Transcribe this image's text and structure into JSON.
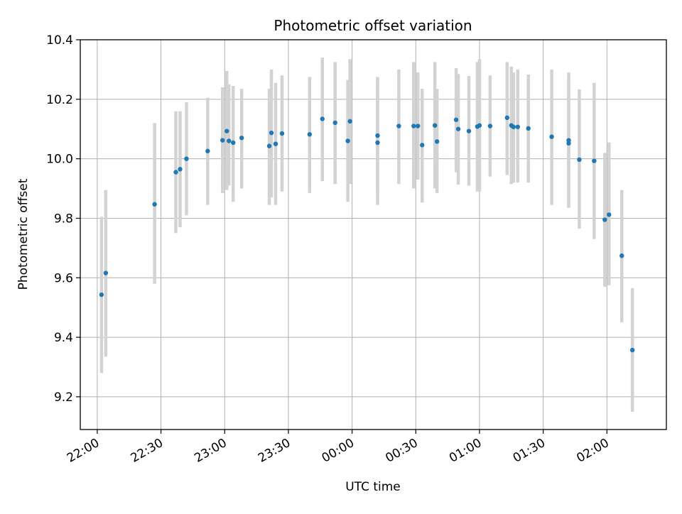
{
  "chart_data": {
    "type": "scatter",
    "title": "Photometric offset variation",
    "xlabel": "UTC time",
    "ylabel": "Photometric offset",
    "x_axis_kind": "time",
    "xlim": [
      "21:52",
      "02:28"
    ],
    "ylim": [
      9.09,
      10.4
    ],
    "x_ticks": [
      "22:00",
      "22:30",
      "23:00",
      "23:30",
      "00:00",
      "00:30",
      "01:00",
      "01:30",
      "02:00"
    ],
    "y_ticks": [
      "9.2",
      "9.4",
      "9.6",
      "9.8",
      "10.0",
      "10.2",
      "10.4"
    ],
    "grid": true,
    "marker_color": "#1f77b4",
    "errorbar_color": "#d3d3d3",
    "series": [
      {
        "x": [
          "22:02",
          "22:04",
          "22:27",
          "22:37",
          "22:39",
          "22:42",
          "22:52",
          "22:59",
          "23:01",
          "23:02",
          "23:04",
          "23:08",
          "23:21",
          "23:22",
          "23:24",
          "23:27",
          "23:40",
          "23:46",
          "23:52",
          "23:58",
          "23:59",
          "00:12",
          "00:12",
          "00:22",
          "00:29",
          "00:31",
          "00:33",
          "00:39",
          "00:40",
          "00:49",
          "00:50",
          "00:55",
          "00:59",
          "01:00",
          "01:05",
          "01:13",
          "01:15",
          "01:16",
          "01:18",
          "01:23",
          "01:34",
          "01:42",
          "01:42",
          "01:47",
          "01:54",
          "01:59",
          "02:01",
          "02:07",
          "02:12"
        ],
        "y": [
          9.543,
          9.616,
          9.847,
          9.955,
          9.965,
          10.0,
          10.026,
          10.062,
          10.093,
          10.06,
          10.054,
          10.07,
          10.043,
          10.087,
          10.05,
          10.085,
          10.082,
          10.134,
          10.121,
          10.06,
          10.126,
          10.054,
          10.078,
          10.11,
          10.11,
          10.11,
          10.046,
          10.112,
          10.058,
          10.131,
          10.1,
          10.093,
          10.108,
          10.112,
          10.11,
          10.138,
          10.112,
          10.107,
          10.107,
          10.102,
          10.074,
          10.062,
          10.052,
          9.997,
          9.993,
          9.795,
          9.812,
          9.674,
          9.357
        ],
        "y_lower": [
          9.28,
          9.335,
          9.58,
          9.75,
          9.77,
          9.81,
          9.845,
          9.885,
          9.895,
          9.91,
          9.855,
          9.9,
          9.845,
          9.87,
          9.845,
          9.89,
          9.885,
          9.925,
          9.915,
          9.855,
          9.915,
          9.845,
          9.89,
          9.915,
          9.9,
          9.93,
          9.853,
          9.9,
          9.885,
          9.955,
          9.913,
          9.91,
          9.89,
          9.89,
          9.94,
          9.945,
          9.915,
          9.92,
          9.92,
          9.92,
          9.845,
          9.835,
          9.84,
          9.765,
          9.73,
          9.57,
          9.575,
          9.45,
          9.15
        ],
        "y_upper": [
          9.805,
          9.895,
          10.12,
          10.16,
          10.16,
          10.19,
          10.205,
          10.24,
          10.295,
          10.25,
          10.245,
          10.235,
          10.235,
          10.3,
          10.255,
          10.28,
          10.275,
          10.34,
          10.325,
          10.265,
          10.335,
          10.26,
          10.275,
          10.3,
          10.325,
          10.29,
          10.235,
          10.325,
          10.235,
          10.305,
          10.285,
          10.278,
          10.325,
          10.335,
          10.28,
          10.325,
          10.31,
          10.29,
          10.3,
          10.283,
          10.3,
          10.29,
          10.265,
          10.233,
          10.255,
          10.02,
          10.055,
          9.895,
          9.565
        ]
      }
    ]
  }
}
